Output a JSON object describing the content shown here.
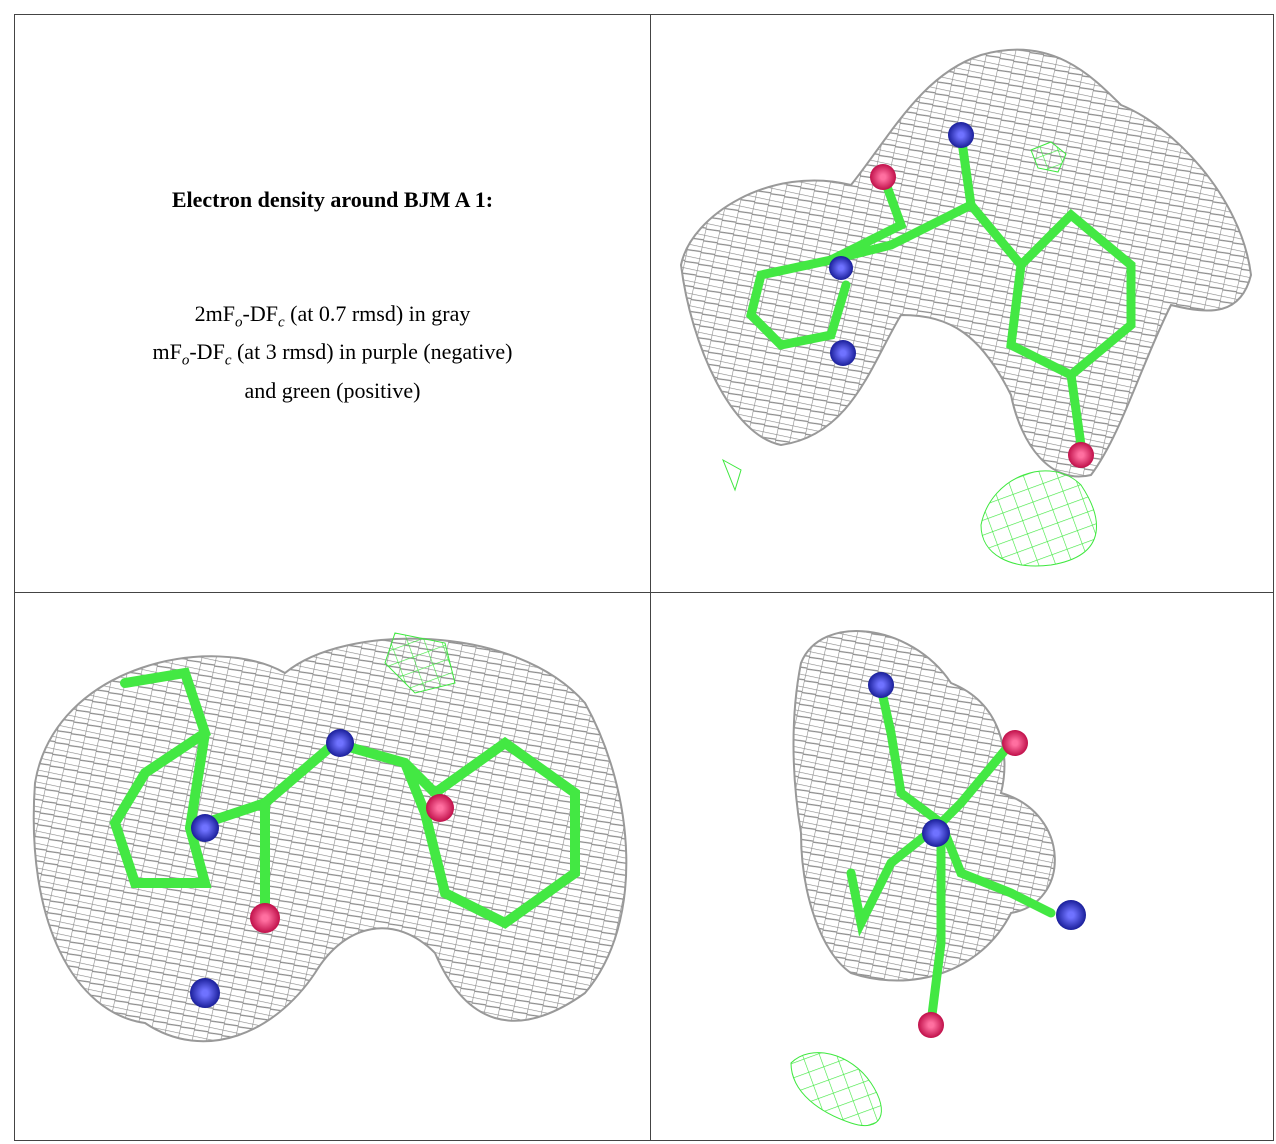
{
  "panel": {
    "title": "Electron density around BJM A 1:",
    "caption": [
      [
        "2mF",
        {
          "sub": "o"
        },
        "-DF",
        {
          "sub": "c"
        },
        " (at 0.7 rmsd) in gray"
      ],
      [
        "mF",
        {
          "sub": "o"
        },
        "-DF",
        {
          "sub": "c"
        },
        " (at 3 rmsd) in purple (negative)"
      ],
      [
        "and green (positive)"
      ]
    ]
  }
}
